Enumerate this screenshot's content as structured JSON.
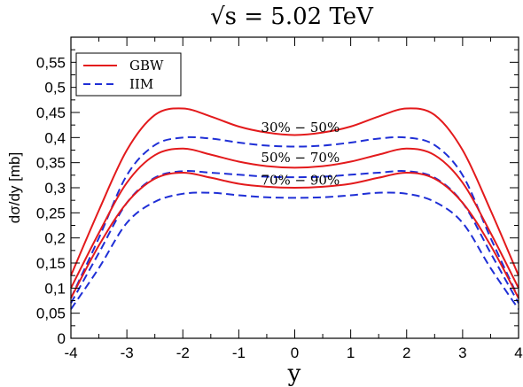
{
  "chart_data": {
    "type": "line",
    "title": "√s = 5.02 TeV",
    "xlabel": "y",
    "ylabel": "dσ/dy [mb]",
    "xlim": [
      -4,
      4
    ],
    "ylim": [
      0,
      0.6
    ],
    "x_ticks": [
      "-4",
      "-3",
      "-2",
      "-1",
      "0",
      "1",
      "2",
      "3",
      "4"
    ],
    "y_ticks": [
      "0",
      "0,05",
      "0,1",
      "0,15",
      "0,2",
      "0,25",
      "0,3",
      "0,35",
      "0,4",
      "0,45",
      "0,5",
      "0,55"
    ],
    "legend": {
      "position": "top-left",
      "entries": [
        {
          "label": "GBW",
          "color": "#e31a1c",
          "style": "solid"
        },
        {
          "label": "IIM",
          "color": "#1f2fd6",
          "style": "dashed"
        }
      ]
    },
    "annotations": [
      {
        "text": "30% − 50%",
        "x": 0.1,
        "y": 0.42
      },
      {
        "text": "50% − 70%",
        "x": 0.1,
        "y": 0.36
      },
      {
        "text": "70% − 90%",
        "x": 0.1,
        "y": 0.315
      }
    ],
    "x": [
      -4,
      -3.5,
      -3,
      -2.5,
      -2,
      -1.5,
      -1,
      -0.5,
      0,
      0.5,
      1,
      1.5,
      2,
      2.5,
      3,
      3.5,
      4
    ],
    "series": [
      {
        "name": "GBW",
        "band": "30% − 50%",
        "color": "#e31a1c",
        "style": "solid",
        "values": [
          0.125,
          0.255,
          0.375,
          0.445,
          0.458,
          0.442,
          0.422,
          0.41,
          0.405,
          0.41,
          0.422,
          0.442,
          0.458,
          0.445,
          0.375,
          0.255,
          0.125
        ]
      },
      {
        "name": "IIM",
        "band": "30% − 50%",
        "color": "#1f2fd6",
        "style": "dashed",
        "values": [
          0.08,
          0.2,
          0.325,
          0.385,
          0.4,
          0.398,
          0.39,
          0.384,
          0.382,
          0.384,
          0.39,
          0.398,
          0.4,
          0.385,
          0.325,
          0.2,
          0.08
        ]
      },
      {
        "name": "GBW",
        "band": "50% − 70%",
        "color": "#e31a1c",
        "style": "solid",
        "values": [
          0.1,
          0.21,
          0.31,
          0.365,
          0.378,
          0.366,
          0.352,
          0.343,
          0.34,
          0.343,
          0.352,
          0.366,
          0.378,
          0.365,
          0.31,
          0.21,
          0.1
        ]
      },
      {
        "name": "IIM",
        "band": "50% − 70%",
        "color": "#1f2fd6",
        "style": "dashed",
        "values": [
          0.07,
          0.17,
          0.27,
          0.32,
          0.333,
          0.33,
          0.326,
          0.322,
          0.321,
          0.322,
          0.326,
          0.33,
          0.333,
          0.32,
          0.27,
          0.17,
          0.07
        ]
      },
      {
        "name": "GBW",
        "band": "70% − 90%",
        "color": "#e31a1c",
        "style": "solid",
        "values": [
          0.08,
          0.185,
          0.27,
          0.318,
          0.33,
          0.32,
          0.308,
          0.302,
          0.3,
          0.302,
          0.308,
          0.32,
          0.33,
          0.318,
          0.27,
          0.185,
          0.08
        ]
      },
      {
        "name": "IIM",
        "band": "70% − 90%",
        "color": "#1f2fd6",
        "style": "dashed",
        "values": [
          0.058,
          0.14,
          0.23,
          0.272,
          0.288,
          0.29,
          0.285,
          0.281,
          0.28,
          0.281,
          0.285,
          0.29,
          0.288,
          0.272,
          0.23,
          0.14,
          0.058
        ]
      }
    ]
  }
}
